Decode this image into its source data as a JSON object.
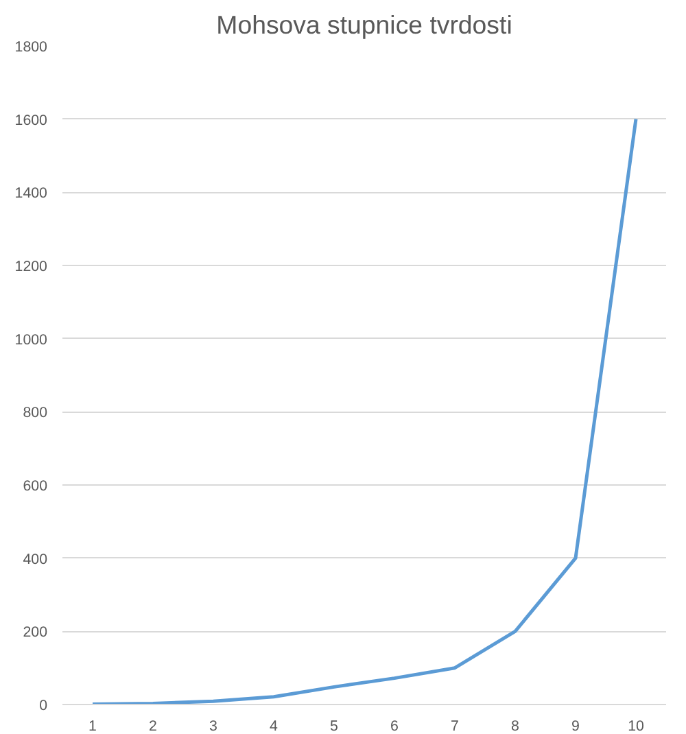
{
  "chart_data": {
    "type": "line",
    "title": "Mohsova stupnice tvrdosti",
    "categories": [
      "1",
      "2",
      "3",
      "4",
      "5",
      "6",
      "7",
      "8",
      "9",
      "10"
    ],
    "series": [
      {
        "color": "#5b9bd5",
        "values": [
          1,
          3,
          9,
          21,
          48,
          72,
          100,
          200,
          400,
          1600
        ]
      }
    ],
    "ylim": [
      0,
      1800
    ],
    "yticks": [
      0,
      200,
      400,
      600,
      800,
      1000,
      1200,
      1400,
      1600,
      1800
    ],
    "grid": "y",
    "marker": "none",
    "line_style": "solid"
  }
}
